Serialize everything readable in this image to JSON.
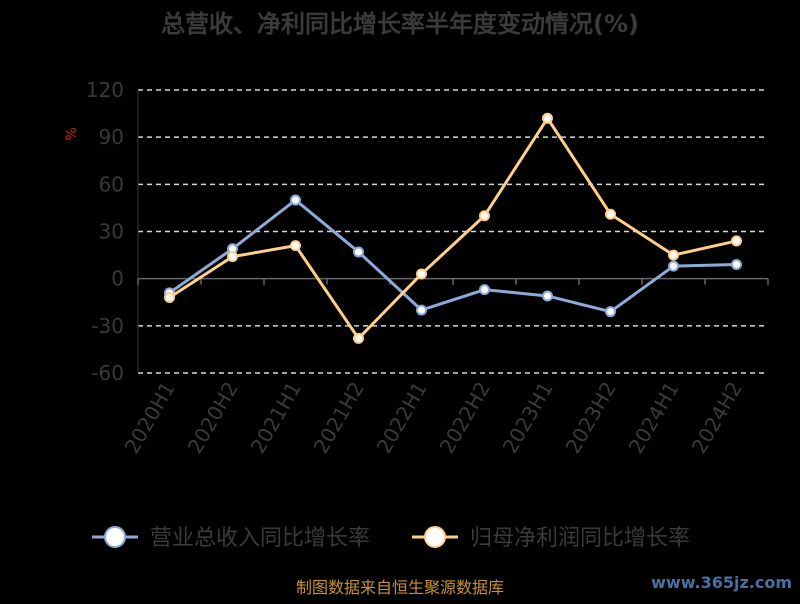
{
  "chart_data": {
    "type": "line",
    "title": "总营收、净利同比增长率半年度变动情况(%)",
    "ylabel": "%",
    "categories": [
      "2020H1",
      "2020H2",
      "2021H1",
      "2021H2",
      "2022H1",
      "2022H2",
      "2023H1",
      "2023H2",
      "2024H1",
      "2024H2"
    ],
    "ylim": [
      -60,
      120
    ],
    "yticks": [
      120,
      90,
      60,
      30,
      0,
      -30,
      -60
    ],
    "grid": true,
    "legend_position": "bottom",
    "series": [
      {
        "name": "营业总收入同比增长率",
        "color": "#8eaadb",
        "values": [
          -9,
          19,
          50,
          17,
          -20,
          -7,
          -11,
          -21,
          8,
          9
        ]
      },
      {
        "name": "归母净利润同比增长率",
        "color": "#ffd08a",
        "values": [
          -12,
          14,
          21,
          -38,
          3,
          40,
          102,
          41,
          15,
          24
        ]
      }
    ]
  },
  "footer": {
    "source": "制图数据来自恒生聚源数据库",
    "watermark": "www.365jz.com"
  }
}
